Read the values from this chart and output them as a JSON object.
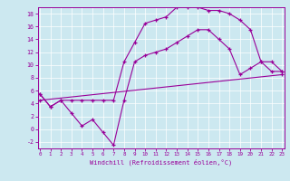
{
  "xlabel": "Windchill (Refroidissement éolien,°C)",
  "x_ticks": [
    0,
    1,
    2,
    3,
    4,
    5,
    6,
    7,
    8,
    9,
    10,
    11,
    12,
    13,
    14,
    15,
    16,
    17,
    18,
    19,
    20,
    21,
    22,
    23
  ],
  "ylim": [
    -3,
    19
  ],
  "xlim": [
    -0.2,
    23.2
  ],
  "yticks": [
    -2,
    0,
    2,
    4,
    6,
    8,
    10,
    12,
    14,
    16,
    18
  ],
  "bg_color": "#cce8f0",
  "line_color": "#990099",
  "line1_x": [
    0,
    1,
    2,
    3,
    4,
    5,
    6,
    7,
    8,
    9,
    10,
    11,
    12,
    13,
    14,
    15,
    16,
    17,
    18,
    19,
    20,
    21,
    22,
    23
  ],
  "line1_y": [
    5.5,
    3.5,
    4.5,
    4.5,
    4.5,
    4.5,
    4.5,
    4.5,
    10.5,
    13.5,
    16.5,
    17.0,
    17.5,
    19.0,
    19.0,
    19.0,
    18.5,
    18.5,
    18.0,
    17.0,
    15.5,
    10.5,
    9.0,
    9.0
  ],
  "line2_x": [
    0,
    1,
    2,
    3,
    4,
    5,
    6,
    7,
    8,
    9,
    10,
    11,
    12,
    13,
    14,
    15,
    16,
    17,
    18,
    19,
    20,
    21,
    22,
    23
  ],
  "line2_y": [
    5.5,
    3.5,
    4.5,
    2.5,
    0.5,
    1.5,
    -0.5,
    -2.5,
    4.5,
    10.5,
    11.5,
    12.0,
    12.5,
    13.5,
    14.5,
    15.5,
    15.5,
    14.0,
    12.5,
    8.5,
    9.5,
    10.5,
    10.5,
    9.0
  ],
  "line3_x": [
    0,
    23
  ],
  "line3_y": [
    4.5,
    8.5
  ]
}
